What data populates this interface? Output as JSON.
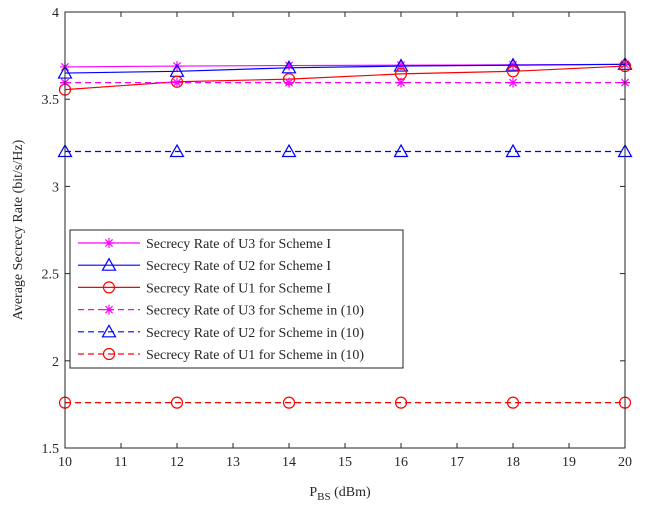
{
  "chart_data": {
    "type": "line",
    "title": "",
    "xlabel": "P",
    "xlabel_sub": "BS",
    "xlabel_unit": " (dBm)",
    "ylabel": "Average Secrecy Rate (bit/s/Hz)",
    "xlim": [
      10,
      20
    ],
    "ylim": [
      1.5,
      4
    ],
    "xticks": [
      "10",
      "11",
      "12",
      "13",
      "14",
      "15",
      "16",
      "17",
      "18",
      "19",
      "20"
    ],
    "yticks": [
      "1.5",
      "2",
      "2.5",
      "3",
      "3.5",
      "4"
    ],
    "grid": false,
    "legend_position": "center-left",
    "x": [
      10,
      12,
      14,
      16,
      18,
      20
    ],
    "series": [
      {
        "name": "Secrecy Rate of U3 for Scheme I",
        "color": "#ff00ff",
        "marker": "asterisk",
        "dashed": false,
        "values": [
          3.685,
          3.69,
          3.693,
          3.695,
          3.697,
          3.7
        ]
      },
      {
        "name": "Secrecy Rate of U2 for Scheme I",
        "color": "#0000ff",
        "marker": "triangle",
        "dashed": false,
        "values": [
          3.65,
          3.66,
          3.68,
          3.69,
          3.695,
          3.7
        ]
      },
      {
        "name": "Secrecy Rate of U1 for Scheme I",
        "color": "#ff0000",
        "marker": "circle",
        "dashed": false,
        "values": [
          3.555,
          3.6,
          3.615,
          3.645,
          3.66,
          3.69
        ]
      },
      {
        "name": "Secrecy Rate of U3 for Scheme in (10)",
        "color": "#ff00ff",
        "marker": "asterisk",
        "dashed": true,
        "values": [
          3.595,
          3.595,
          3.595,
          3.595,
          3.595,
          3.595
        ]
      },
      {
        "name": "Secrecy Rate of U2 for Scheme in (10)",
        "color": "#0000ff",
        "marker": "triangle",
        "dashed": true,
        "values": [
          3.2,
          3.2,
          3.2,
          3.2,
          3.2,
          3.2
        ]
      },
      {
        "name": "Secrecy Rate of U1 for Scheme in (10)",
        "color": "#ff0000",
        "marker": "circle",
        "dashed": true,
        "values": [
          1.76,
          1.76,
          1.76,
          1.76,
          1.76,
          1.76
        ]
      }
    ]
  }
}
